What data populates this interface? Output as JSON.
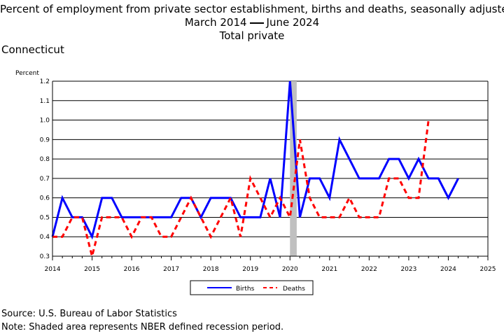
{
  "title": {
    "line1": "Percent of employment from private sector establishment, births and deaths, seasonally adjusted",
    "line2_start": "March 2014",
    "line2_end": "June 2024",
    "line3": "Total private"
  },
  "region": "Connecticut",
  "colors": {
    "births": "#0000ff",
    "deaths": "#ff0000",
    "recession": "#c0c0c0"
  },
  "chart_data": {
    "type": "line",
    "ylabel": "Percent",
    "ylim": [
      0.3,
      1.2
    ],
    "yticks": [
      "0.3",
      "0.4",
      "0.5",
      "0.6",
      "0.7",
      "0.8",
      "0.9",
      "1.0",
      "1.1",
      "1.2"
    ],
    "xlim": [
      2014,
      2025
    ],
    "xticks": [
      "2014",
      "2015",
      "2016",
      "2017",
      "2018",
      "2019",
      "2020",
      "2021",
      "2022",
      "2023",
      "2024",
      "2025"
    ],
    "grid": "horizontal",
    "legend_position": "bottom-center",
    "recession": {
      "start": 2020.0,
      "end": 2020.17
    },
    "x": [
      2014.0,
      2014.25,
      2014.5,
      2014.75,
      2015.0,
      2015.25,
      2015.5,
      2015.75,
      2016.0,
      2016.25,
      2016.5,
      2016.75,
      2017.0,
      2017.25,
      2017.5,
      2017.75,
      2018.0,
      2018.25,
      2018.5,
      2018.75,
      2019.0,
      2019.25,
      2019.5,
      2019.75,
      2020.0,
      2020.25,
      2020.5,
      2020.75,
      2021.0,
      2021.25,
      2021.5,
      2021.75,
      2022.0,
      2022.25,
      2022.5,
      2022.75,
      2023.0,
      2023.25,
      2023.5,
      2023.75,
      2024.0,
      2024.25
    ],
    "series": [
      {
        "name": "Births",
        "style": "solid",
        "values": [
          0.4,
          0.6,
          0.5,
          0.5,
          0.4,
          0.6,
          0.6,
          0.5,
          0.5,
          0.5,
          0.5,
          0.5,
          0.5,
          0.6,
          0.6,
          0.5,
          0.6,
          0.6,
          0.6,
          0.5,
          0.5,
          0.5,
          0.7,
          0.5,
          1.2,
          0.5,
          0.7,
          0.7,
          0.6,
          0.9,
          0.8,
          0.7,
          0.7,
          0.7,
          0.8,
          0.8,
          0.7,
          0.8,
          0.7,
          0.7,
          0.6,
          0.7
        ]
      },
      {
        "name": "Deaths",
        "style": "dashed",
        "values": [
          0.4,
          0.4,
          0.5,
          0.5,
          0.3,
          0.5,
          0.5,
          0.5,
          0.4,
          0.5,
          0.5,
          0.4,
          0.4,
          0.5,
          0.6,
          0.5,
          0.4,
          0.5,
          0.6,
          0.4,
          0.7,
          0.6,
          0.5,
          0.6,
          0.5,
          0.9,
          0.6,
          0.5,
          0.5,
          0.5,
          0.6,
          0.5,
          0.5,
          0.5,
          0.7,
          0.7,
          0.6,
          0.6,
          1.0,
          null,
          null,
          null
        ]
      }
    ]
  },
  "legend": {
    "births": "Births",
    "deaths": "Deaths"
  },
  "footer": {
    "source": "Source: U.S. Bureau of Labor Statistics",
    "note": "Note: Shaded area represents NBER defined recession period."
  }
}
